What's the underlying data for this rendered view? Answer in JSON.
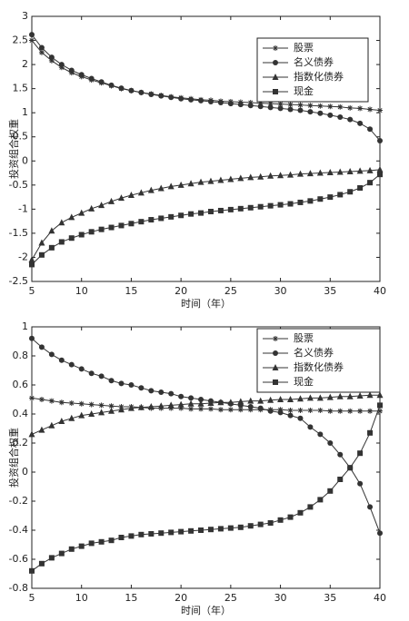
{
  "chart_data": [
    {
      "type": "line",
      "xlabel": "时间（年）",
      "ylabel": "投资组合权重",
      "x": [
        5,
        6,
        7,
        8,
        9,
        10,
        11,
        12,
        13,
        14,
        15,
        16,
        17,
        18,
        19,
        20,
        21,
        22,
        23,
        24,
        25,
        26,
        27,
        28,
        29,
        30,
        31,
        32,
        33,
        34,
        35,
        36,
        37,
        38,
        39,
        40
      ],
      "xlim": [
        5,
        40
      ],
      "ylim": [
        -2.5,
        3
      ],
      "xticks": [
        5,
        10,
        15,
        20,
        25,
        30,
        35,
        40
      ],
      "yticks": [
        -2.5,
        -2,
        -1.5,
        -1,
        -0.5,
        0,
        0.5,
        1,
        1.5,
        2,
        2.5,
        3
      ],
      "legend": "upper right",
      "series": [
        {
          "name": "股票",
          "color": "#333333",
          "marker": "star",
          "values": [
            2.5,
            2.25,
            2.08,
            1.94,
            1.83,
            1.75,
            1.68,
            1.62,
            1.56,
            1.5,
            1.46,
            1.42,
            1.39,
            1.36,
            1.33,
            1.31,
            1.29,
            1.27,
            1.26,
            1.24,
            1.23,
            1.22,
            1.21,
            1.2,
            1.19,
            1.18,
            1.17,
            1.16,
            1.15,
            1.14,
            1.13,
            1.12,
            1.1,
            1.09,
            1.07,
            1.05
          ]
        },
        {
          "name": "名义债券",
          "color": "#333333",
          "marker": "circle",
          "values": [
            2.62,
            2.35,
            2.15,
            2.0,
            1.88,
            1.79,
            1.71,
            1.64,
            1.57,
            1.51,
            1.46,
            1.42,
            1.38,
            1.35,
            1.32,
            1.29,
            1.27,
            1.25,
            1.23,
            1.21,
            1.19,
            1.17,
            1.15,
            1.13,
            1.11,
            1.09,
            1.07,
            1.05,
            1.02,
            0.99,
            0.95,
            0.91,
            0.86,
            0.78,
            0.66,
            0.42
          ]
        },
        {
          "name": "指数化债券",
          "color": "#333333",
          "marker": "triangle",
          "values": [
            -2.05,
            -1.7,
            -1.45,
            -1.28,
            -1.17,
            -1.08,
            -0.99,
            -0.92,
            -0.84,
            -0.77,
            -0.71,
            -0.66,
            -0.61,
            -0.57,
            -0.53,
            -0.5,
            -0.47,
            -0.44,
            -0.42,
            -0.4,
            -0.38,
            -0.36,
            -0.34,
            -0.33,
            -0.31,
            -0.3,
            -0.29,
            -0.27,
            -0.26,
            -0.25,
            -0.24,
            -0.23,
            -0.22,
            -0.21,
            -0.2,
            -0.18
          ]
        },
        {
          "name": "现金",
          "color": "#333333",
          "marker": "square",
          "values": [
            -2.15,
            -1.95,
            -1.8,
            -1.68,
            -1.6,
            -1.53,
            -1.47,
            -1.42,
            -1.38,
            -1.34,
            -1.3,
            -1.26,
            -1.22,
            -1.19,
            -1.16,
            -1.13,
            -1.1,
            -1.08,
            -1.05,
            -1.03,
            -1.01,
            -0.99,
            -0.97,
            -0.95,
            -0.93,
            -0.91,
            -0.89,
            -0.86,
            -0.83,
            -0.79,
            -0.75,
            -0.7,
            -0.64,
            -0.56,
            -0.45,
            -0.28
          ]
        }
      ]
    },
    {
      "type": "line",
      "xlabel": "时间（年）",
      "ylabel": "投资组合权重",
      "x": [
        5,
        6,
        7,
        8,
        9,
        10,
        11,
        12,
        13,
        14,
        15,
        16,
        17,
        18,
        19,
        20,
        21,
        22,
        23,
        24,
        25,
        26,
        27,
        28,
        29,
        30,
        31,
        32,
        33,
        34,
        35,
        36,
        37,
        38,
        39,
        40
      ],
      "xlim": [
        5,
        40
      ],
      "ylim": [
        -0.8,
        1
      ],
      "xticks": [
        5,
        10,
        15,
        20,
        25,
        30,
        35,
        40
      ],
      "yticks": [
        -0.8,
        -0.6,
        -0.4,
        -0.2,
        0,
        0.2,
        0.4,
        0.6,
        0.8,
        1
      ],
      "legend": "upper right",
      "series": [
        {
          "name": "股票",
          "color": "#333333",
          "marker": "star",
          "values": [
            0.51,
            0.5,
            0.49,
            0.48,
            0.475,
            0.47,
            0.465,
            0.46,
            0.455,
            0.45,
            0.45,
            0.445,
            0.44,
            0.44,
            0.44,
            0.44,
            0.435,
            0.435,
            0.435,
            0.43,
            0.43,
            0.43,
            0.43,
            0.43,
            0.43,
            0.43,
            0.425,
            0.425,
            0.425,
            0.425,
            0.42,
            0.42,
            0.42,
            0.42,
            0.42,
            0.42
          ]
        },
        {
          "name": "名义债券",
          "color": "#333333",
          "marker": "circle",
          "values": [
            0.92,
            0.86,
            0.81,
            0.77,
            0.74,
            0.71,
            0.68,
            0.66,
            0.63,
            0.61,
            0.6,
            0.58,
            0.56,
            0.55,
            0.54,
            0.52,
            0.51,
            0.5,
            0.49,
            0.48,
            0.47,
            0.46,
            0.45,
            0.44,
            0.42,
            0.41,
            0.39,
            0.37,
            0.31,
            0.26,
            0.2,
            0.12,
            0.03,
            -0.08,
            -0.24,
            -0.42
          ]
        },
        {
          "name": "指数化债券",
          "color": "#333333",
          "marker": "triangle",
          "values": [
            0.26,
            0.29,
            0.32,
            0.35,
            0.37,
            0.39,
            0.4,
            0.41,
            0.42,
            0.43,
            0.44,
            0.445,
            0.45,
            0.455,
            0.46,
            0.465,
            0.47,
            0.47,
            0.475,
            0.48,
            0.48,
            0.485,
            0.49,
            0.49,
            0.495,
            0.5,
            0.5,
            0.505,
            0.51,
            0.51,
            0.515,
            0.52,
            0.52,
            0.525,
            0.53,
            0.53
          ]
        },
        {
          "name": "现金",
          "color": "#333333",
          "marker": "square",
          "values": [
            -0.68,
            -0.63,
            -0.59,
            -0.56,
            -0.53,
            -0.51,
            -0.49,
            -0.48,
            -0.47,
            -0.45,
            -0.44,
            -0.43,
            -0.425,
            -0.42,
            -0.415,
            -0.41,
            -0.405,
            -0.4,
            -0.395,
            -0.39,
            -0.385,
            -0.38,
            -0.37,
            -0.36,
            -0.35,
            -0.33,
            -0.31,
            -0.28,
            -0.24,
            -0.19,
            -0.13,
            -0.05,
            0.03,
            0.13,
            0.27,
            0.46
          ]
        }
      ]
    }
  ]
}
